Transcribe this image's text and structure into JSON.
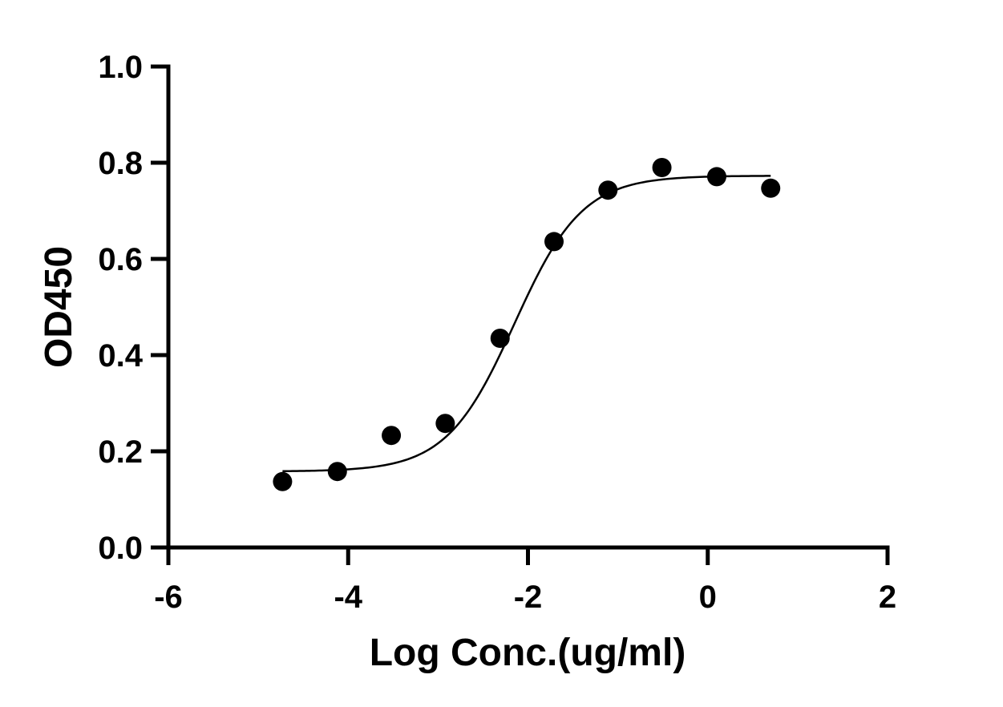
{
  "chart_data": {
    "type": "scatter",
    "title": "",
    "xlabel": "Log Conc.(ug/ml)",
    "ylabel": "OD450",
    "xlim": [
      -6,
      2
    ],
    "ylim": [
      0,
      1.0
    ],
    "x_ticks": [
      -6,
      -4,
      -2,
      0,
      2
    ],
    "x_tick_labels": [
      "-6",
      "-4",
      "-2",
      "0",
      "2"
    ],
    "y_ticks": [
      0,
      0.2,
      0.4,
      0.6,
      0.8,
      1.0
    ],
    "y_tick_labels": [
      "0.0",
      "0.2",
      "0.4",
      "0.6",
      "0.8",
      "1.0"
    ],
    "grid": false,
    "legend": "none",
    "series": [
      {
        "x": [
          -4.73,
          -4.12,
          -3.52,
          -2.92,
          -2.31,
          -1.71,
          -1.11,
          -0.51,
          0.1,
          0.7
        ],
        "y": [
          0.137,
          0.158,
          0.233,
          0.258,
          0.435,
          0.636,
          0.743,
          0.79,
          0.771,
          0.747
        ],
        "marker": "circle",
        "color": "#000000"
      }
    ],
    "fit_curve": {
      "model": "4PL",
      "bottom": 0.158,
      "top": 0.773,
      "log_ec50": -2.15,
      "hill_slope": 1.15,
      "x_range": [
        -4.73,
        0.7
      ],
      "color": "#000000"
    }
  }
}
